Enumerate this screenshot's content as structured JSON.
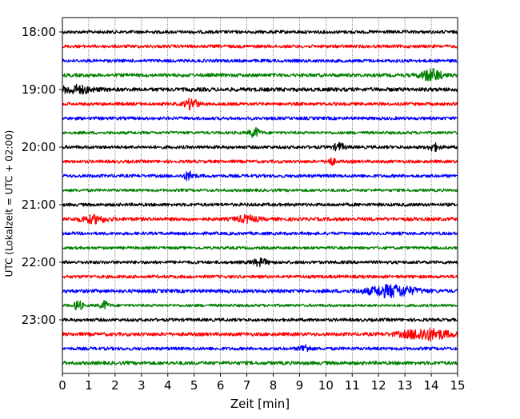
{
  "chart_data": {
    "type": "line",
    "title": "",
    "xlabel": "Zeit  [min]",
    "ylabel": "UTC (Lokalzeit = UTC + 02:00)",
    "xlim": [
      0,
      15
    ],
    "x_ticks": [
      "0",
      "1",
      "2",
      "3",
      "4",
      "5",
      "6",
      "7",
      "8",
      "9",
      "10",
      "11",
      "12",
      "13",
      "14",
      "15"
    ],
    "y_ticks": [
      "18:00",
      "19:00",
      "20:00",
      "21:00",
      "22:00",
      "23:00"
    ],
    "grid": "vertical dotted at each minute",
    "trace_interval_min": 15,
    "color_cycle": [
      "#000000",
      "#ff0000",
      "#0000ff",
      "#008000"
    ],
    "series": [
      {
        "start": "18:00",
        "noise": 0.9,
        "events": []
      },
      {
        "start": "18:15",
        "noise": 0.9,
        "events": []
      },
      {
        "start": "18:30",
        "noise": 0.9,
        "events": []
      },
      {
        "start": "18:45",
        "noise": 1.0,
        "events": [
          {
            "t": 14.0,
            "amp": 2.2,
            "w": 0.4
          }
        ]
      },
      {
        "start": "19:00",
        "noise": 1.1,
        "events": [
          {
            "t": 0.5,
            "amp": 1.4,
            "w": 0.6
          }
        ]
      },
      {
        "start": "19:15",
        "noise": 0.9,
        "events": [
          {
            "t": 4.9,
            "amp": 2.0,
            "w": 0.25
          }
        ]
      },
      {
        "start": "19:30",
        "noise": 0.9,
        "events": []
      },
      {
        "start": "19:45",
        "noise": 0.8,
        "events": [
          {
            "t": 7.3,
            "amp": 1.8,
            "w": 0.2
          }
        ]
      },
      {
        "start": "20:00",
        "noise": 0.9,
        "events": [
          {
            "t": 10.5,
            "amp": 1.4,
            "w": 0.2
          },
          {
            "t": 14.1,
            "amp": 1.3,
            "w": 0.2
          }
        ]
      },
      {
        "start": "20:15",
        "noise": 0.9,
        "events": [
          {
            "t": 10.2,
            "amp": 1.3,
            "w": 0.15
          }
        ]
      },
      {
        "start": "20:30",
        "noise": 0.9,
        "events": [
          {
            "t": 4.8,
            "amp": 1.6,
            "w": 0.2
          }
        ]
      },
      {
        "start": "20:45",
        "noise": 0.8,
        "events": []
      },
      {
        "start": "21:00",
        "noise": 0.9,
        "events": []
      },
      {
        "start": "21:15",
        "noise": 1.0,
        "events": [
          {
            "t": 1.2,
            "amp": 1.3,
            "w": 0.5
          },
          {
            "t": 7.0,
            "amp": 1.2,
            "w": 0.4
          }
        ]
      },
      {
        "start": "21:30",
        "noise": 0.9,
        "events": []
      },
      {
        "start": "21:45",
        "noise": 0.8,
        "events": []
      },
      {
        "start": "22:00",
        "noise": 0.9,
        "events": [
          {
            "t": 7.5,
            "amp": 1.2,
            "w": 0.3
          }
        ]
      },
      {
        "start": "22:15",
        "noise": 0.9,
        "events": []
      },
      {
        "start": "22:30",
        "noise": 1.0,
        "events": [
          {
            "t": 12.5,
            "amp": 2.2,
            "w": 0.9
          }
        ]
      },
      {
        "start": "22:45",
        "noise": 0.8,
        "events": [
          {
            "t": 0.6,
            "amp": 2.0,
            "w": 0.15
          },
          {
            "t": 1.6,
            "amp": 1.6,
            "w": 0.15
          }
        ]
      },
      {
        "start": "23:00",
        "noise": 0.9,
        "events": []
      },
      {
        "start": "23:15",
        "noise": 1.0,
        "events": [
          {
            "t": 13.8,
            "amp": 2.1,
            "w": 0.9
          }
        ]
      },
      {
        "start": "23:30",
        "noise": 0.9,
        "events": [
          {
            "t": 9.2,
            "amp": 1.4,
            "w": 0.2
          }
        ]
      },
      {
        "start": "23:45",
        "noise": 1.0,
        "events": []
      }
    ]
  }
}
